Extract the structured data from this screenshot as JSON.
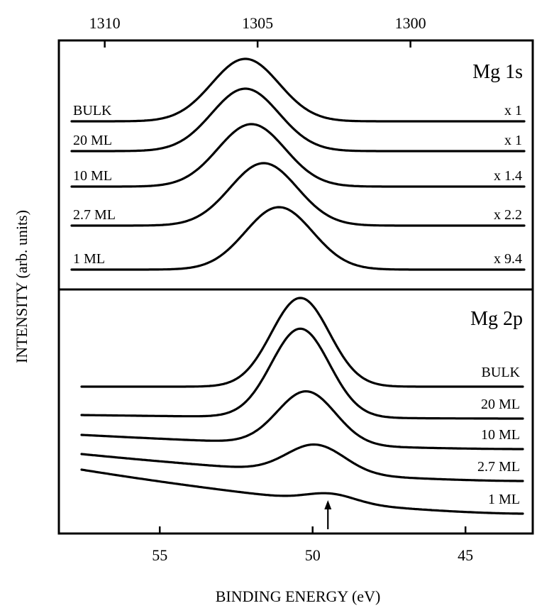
{
  "chart_data": [
    {
      "panel": "Mg 1s",
      "type": "line",
      "title": "Mg 1s",
      "x_axis_position": "top",
      "xlim": [
        1311.5,
        1296.0
      ],
      "xticks": [
        "1310",
        "1305",
        "1300"
      ],
      "xtick_values": [
        1310,
        1305,
        1300
      ],
      "series": [
        {
          "label": "BULK",
          "multiplier": "x 1",
          "peak_x": 1305.4,
          "width": 1.1,
          "amplitude": 88,
          "baseline": 171,
          "slope": 0
        },
        {
          "label": "20 ML",
          "multiplier": "x 1",
          "peak_x": 1305.4,
          "width": 1.1,
          "amplitude": 88,
          "baseline": 213,
          "slope": 0
        },
        {
          "label": "10 ML",
          "multiplier": "x 1.4",
          "peak_x": 1305.2,
          "width": 1.1,
          "amplitude": 88,
          "baseline": 263,
          "slope": 0
        },
        {
          "label": "2.7 ML",
          "multiplier": "x 2.2",
          "peak_x": 1304.8,
          "width": 1.1,
          "amplitude": 88,
          "baseline": 318,
          "slope": 0
        },
        {
          "label": "1 ML",
          "multiplier": "x 9.4",
          "peak_x": 1304.3,
          "width": 1.1,
          "amplitude": 88,
          "baseline": 380,
          "slope": 0
        }
      ]
    },
    {
      "panel": "Mg 2p",
      "type": "line",
      "title": "Mg 2p",
      "x_axis_position": "bottom",
      "xlabel": "BINDING ENERGY (eV)",
      "xlim": [
        58.3,
        42.8
      ],
      "xticks": [
        "55",
        "50",
        "45"
      ],
      "xtick_values": [
        55,
        50,
        45
      ],
      "series": [
        {
          "label": "BULK",
          "peak_x": 50.4,
          "width": 0.95,
          "amplitude": 125,
          "baseline": 545,
          "slope": 0
        },
        {
          "label": "20 ML",
          "peak_x": 50.4,
          "width": 0.95,
          "amplitude": 125,
          "baseline": 590,
          "slope": 5
        },
        {
          "label": "10 ML",
          "peak_x": 50.2,
          "width": 0.95,
          "amplitude": 75,
          "baseline": 633,
          "slope": 20
        },
        {
          "label": "2.7 ML",
          "peak_x": 49.9,
          "width": 0.95,
          "amplitude": 40,
          "baseline": 678,
          "slope": 38
        },
        {
          "label": "1 ML",
          "peak_x": 49.4,
          "width": 0.8,
          "amplitude": 12,
          "baseline": 724,
          "slope": 62
        }
      ],
      "arrow_marker_x": 49.5
    }
  ],
  "ylabel": "INTENSITY (arb. units)"
}
